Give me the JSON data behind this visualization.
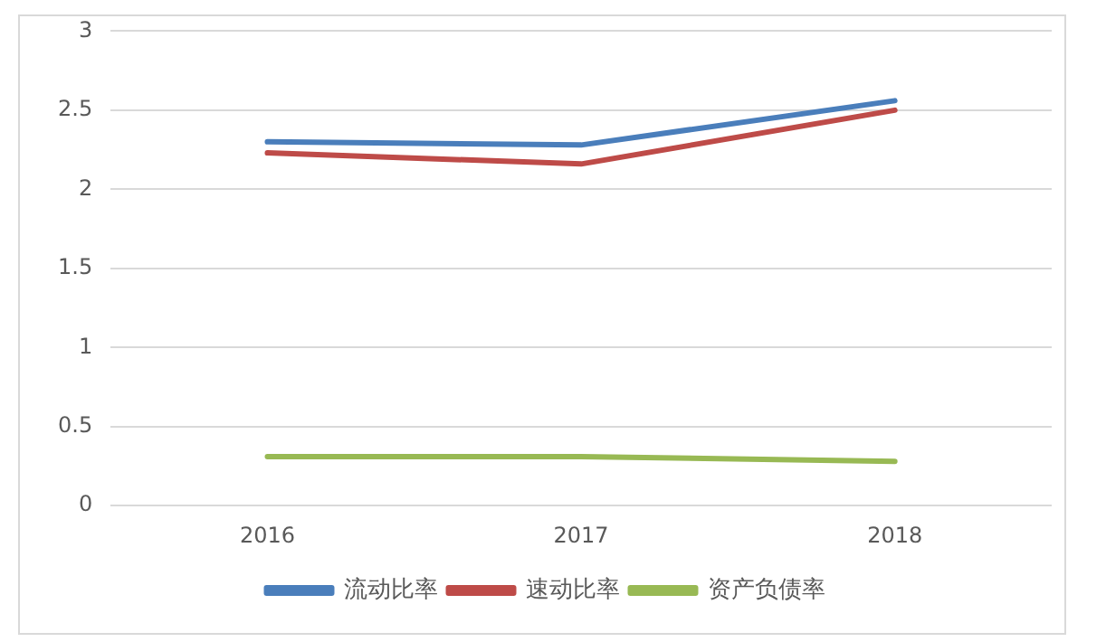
{
  "chart_data": {
    "type": "line",
    "categories": [
      "2016",
      "2017",
      "2018"
    ],
    "series": [
      {
        "name": "流动比率",
        "color": "#4a7ebb",
        "values": [
          2.3,
          2.28,
          2.56
        ]
      },
      {
        "name": "速动比率",
        "color": "#be4b48",
        "values": [
          2.23,
          2.16,
          2.5
        ]
      },
      {
        "name": "资产负债率",
        "color": "#98b954",
        "values": [
          0.31,
          0.31,
          0.28
        ]
      }
    ],
    "ylim": [
      0,
      3
    ],
    "yticks": [
      0,
      0.5,
      1,
      1.5,
      2,
      2.5,
      3
    ],
    "grid": "y",
    "legend": "bottom",
    "marker": "none",
    "line_style": "solid"
  }
}
